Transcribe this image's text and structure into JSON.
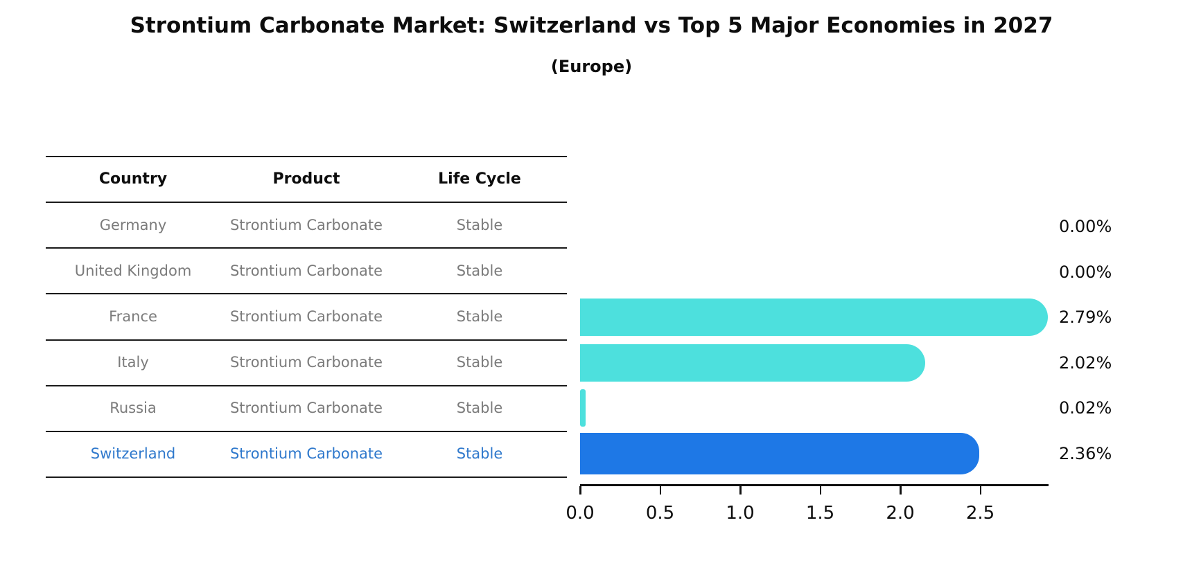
{
  "chart_data": {
    "type": "bar",
    "orientation": "horizontal",
    "title": "Strontium Carbonate Market: Switzerland vs Top 5 Major Economies in 2027",
    "subtitle": "(Europe)",
    "categories": [
      "Germany",
      "United Kingdom",
      "France",
      "Italy",
      "Russia",
      "Switzerland"
    ],
    "values": [
      0.0,
      0.0,
      2.79,
      2.02,
      0.02,
      2.36
    ],
    "value_labels": [
      "0.00%",
      "0.00%",
      "2.79%",
      "2.02%",
      "0.02%",
      "2.36%"
    ],
    "xtick_labels": [
      "0.0",
      "0.5",
      "1.0",
      "1.5",
      "2.0",
      "2.5"
    ],
    "xlim": [
      0,
      2.93
    ],
    "grid": false,
    "legend": "none",
    "bar_color": "#4de0dd",
    "highlight_color": "#1e78e6",
    "highlight_index": 5
  },
  "table": {
    "headers": [
      "Country",
      "Product",
      "Life Cycle"
    ],
    "rows": [
      {
        "country": "Germany",
        "product": "Strontium Carbonate",
        "life_cycle": "Stable"
      },
      {
        "country": "United Kingdom",
        "product": "Strontium Carbonate",
        "life_cycle": "Stable"
      },
      {
        "country": "France",
        "product": "Strontium Carbonate",
        "life_cycle": "Stable"
      },
      {
        "country": "Italy",
        "product": "Strontium Carbonate",
        "life_cycle": "Stable"
      },
      {
        "country": "Russia",
        "product": "Strontium Carbonate",
        "life_cycle": "Stable"
      },
      {
        "country": "Switzerland",
        "product": "Strontium Carbonate",
        "life_cycle": "Stable"
      }
    ],
    "row_text_color": "#7b7b7b",
    "highlight_row_index": 5,
    "highlight_text_color": "#2e78cc"
  }
}
